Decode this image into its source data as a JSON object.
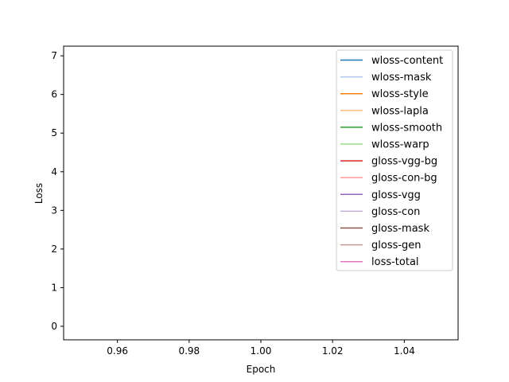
{
  "chart_data": {
    "type": "line",
    "title": "",
    "xlabel": "Epoch",
    "ylabel": "Loss",
    "xlim": [
      0.945,
      1.055
    ],
    "ylim": [
      -0.35,
      7.25
    ],
    "xticks": [
      0.96,
      0.98,
      1.0,
      1.02,
      1.04
    ],
    "xtick_labels": [
      "0.96",
      "0.98",
      "1.00",
      "1.02",
      "1.04"
    ],
    "yticks": [
      0,
      1,
      2,
      3,
      4,
      5,
      6,
      7
    ],
    "ytick_labels": [
      "0",
      "1",
      "2",
      "3",
      "4",
      "5",
      "6",
      "7"
    ],
    "grid": false,
    "legend_position": "upper-right",
    "series": [
      {
        "name": "wloss-content",
        "color": "#1f77b4",
        "x": [
          1.0
        ],
        "y": [
          null
        ]
      },
      {
        "name": "wloss-mask",
        "color": "#aec7e8",
        "x": [
          1.0
        ],
        "y": [
          null
        ]
      },
      {
        "name": "wloss-style",
        "color": "#ff7f0e",
        "x": [
          1.0
        ],
        "y": [
          null
        ]
      },
      {
        "name": "wloss-lapla",
        "color": "#ffbb78",
        "x": [
          1.0
        ],
        "y": [
          null
        ]
      },
      {
        "name": "wloss-smooth",
        "color": "#2ca02c",
        "x": [
          1.0
        ],
        "y": [
          null
        ]
      },
      {
        "name": "wloss-warp",
        "color": "#98df8a",
        "x": [
          1.0
        ],
        "y": [
          null
        ]
      },
      {
        "name": "gloss-vgg-bg",
        "color": "#d62728",
        "x": [
          1.0
        ],
        "y": [
          null
        ]
      },
      {
        "name": "gloss-con-bg",
        "color": "#ff9896",
        "x": [
          1.0
        ],
        "y": [
          null
        ]
      },
      {
        "name": "gloss-vgg",
        "color": "#9467bd",
        "x": [
          1.0
        ],
        "y": [
          null
        ]
      },
      {
        "name": "gloss-con",
        "color": "#c5b0d5",
        "x": [
          1.0
        ],
        "y": [
          null
        ]
      },
      {
        "name": "gloss-mask",
        "color": "#8c564b",
        "x": [
          1.0
        ],
        "y": [
          null
        ]
      },
      {
        "name": "gloss-gen",
        "color": "#c49c94",
        "x": [
          1.0
        ],
        "y": [
          null
        ]
      },
      {
        "name": "loss-total",
        "color": "#e377c2",
        "x": [
          1.0
        ],
        "y": [
          null
        ]
      }
    ]
  }
}
